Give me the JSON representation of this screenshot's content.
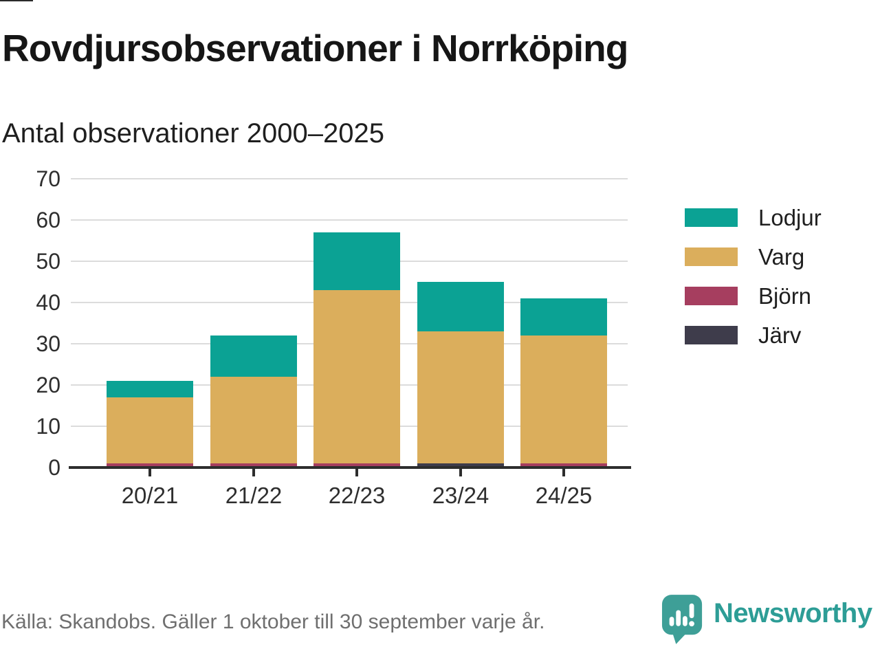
{
  "title": "Rovdjursobservationer i Norrköping",
  "subtitle": "Antal observationer 2000–2025",
  "footer": {
    "source": "Källa: Skandobs. Gäller 1 oktober till 30 september varje år.",
    "brand": "Newsworthy"
  },
  "colors": {
    "lodjur": "#0ba294",
    "varg": "#dbae5c",
    "bjorn": "#a63e5f",
    "jarv": "#3e3c4b",
    "axis": "#2d2d2d",
    "gridline": "#dcdcdc",
    "brand_teal": "#3e9f97",
    "source_gray": "#6f6f6f"
  },
  "chart_data": {
    "type": "bar",
    "stacked": true,
    "title": "Rovdjursobservationer i Norrköping",
    "subtitle": "Antal observationer 2000–2025",
    "categories": [
      "20/21",
      "21/22",
      "22/23",
      "23/24",
      "24/25"
    ],
    "series": [
      {
        "name": "Lodjur",
        "color": "#0ba294",
        "values": [
          4,
          10,
          14,
          12,
          9
        ]
      },
      {
        "name": "Varg",
        "color": "#dbae5c",
        "values": [
          16,
          21,
          42,
          32,
          31
        ]
      },
      {
        "name": "Björn",
        "color": "#a63e5f",
        "values": [
          1,
          1,
          1,
          0,
          1
        ]
      },
      {
        "name": "Järv",
        "color": "#3e3c4b",
        "values": [
          0,
          0,
          0,
          1,
          0
        ]
      }
    ],
    "totals": [
      21,
      32,
      57,
      45,
      41
    ],
    "xlabel": "",
    "ylabel": "",
    "ylim": [
      0,
      70
    ],
    "yticks": [
      0,
      10,
      20,
      30,
      40,
      50,
      60,
      70
    ],
    "grid": "horizontal",
    "legend_position": "right"
  }
}
